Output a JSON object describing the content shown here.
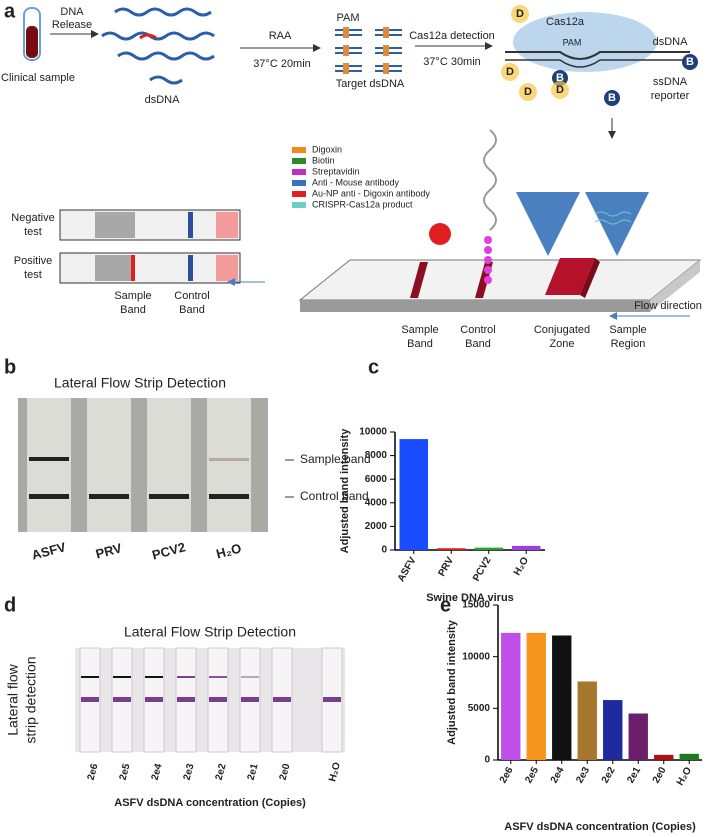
{
  "panel_a": {
    "letter": "a",
    "clinical_sample": "Clinical sample",
    "dna_release": [
      "DNA",
      "Release"
    ],
    "dsdna_label": "dsDNA",
    "raa": "RAA",
    "raa_condition": "37°C 20min",
    "pam": "PAM",
    "target_dsdna": "Target dsDNA",
    "cas12a_detection": "Cas12a detection",
    "cas12a_condition": "37°C 30min",
    "cas12a": "Cas12a",
    "pam_complex": "PAM",
    "dsdna_complex": "dsDNA",
    "ssdna_reporter": [
      "ssDNA",
      "reporter"
    ],
    "reporter_d": "D",
    "reporter_b": "B",
    "legend": [
      "Digoxin",
      "Biotin",
      "Streptavidin",
      "Anti - Mouse antibody",
      "Au-NP anti - Digoxin antibody",
      "CRISPR-Cas12a product"
    ],
    "negative_test": [
      "Negative",
      "test"
    ],
    "positive_test": [
      "Positive",
      "test"
    ],
    "result_sample_band": [
      "Sample",
      "Band"
    ],
    "result_control_band": [
      "Control",
      "Band"
    ],
    "strip_sample_band": [
      "Sample",
      "Band"
    ],
    "strip_control_band": [
      "Control",
      "Band"
    ],
    "conjugated_zone": [
      "Conjugated",
      "Zone"
    ],
    "sample_region": [
      "Sample",
      "Region"
    ],
    "flow_direction": "Flow direction"
  },
  "panel_b": {
    "letter": "b",
    "title": "Lateral Flow Strip Detection",
    "sample_band": "Sample band",
    "control_band": "Control band",
    "strips": [
      "ASFV",
      "PRV",
      "PCV2",
      "H₂O"
    ]
  },
  "panel_c": {
    "letter": "c"
  },
  "panel_d": {
    "letter": "d",
    "title": "Lateral Flow Strip Detection",
    "side_label": [
      "Lateral flow",
      "strip detection"
    ],
    "strips": [
      "2e6",
      "2e5",
      "2e4",
      "2e3",
      "2e2",
      "2e1",
      "2e0",
      "H₂O"
    ],
    "x_label": "ASFV dsDNA concentration (Copies)"
  },
  "panel_e": {
    "letter": "e"
  },
  "chart_data": [
    {
      "type": "bar",
      "x_label": "Swine DNA virus",
      "y_label": "Adjusted band intensity",
      "categories": [
        "ASFV",
        "PRV",
        "PCV2",
        "H₂O"
      ],
      "values": [
        9400,
        150,
        200,
        350
      ],
      "colors": [
        "#1a4dff",
        "#e02020",
        "#2aa02a",
        "#9a3fe0"
      ],
      "ylim": [
        0,
        10000
      ],
      "yticks": [
        0,
        2000,
        4000,
        6000,
        8000,
        10000
      ]
    },
    {
      "type": "bar",
      "x_label": "ASFV dsDNA concentration (Copies)",
      "y_label": "Adjusted band intensity",
      "categories": [
        "2e6",
        "2e5",
        "2e4",
        "2e3",
        "2e2",
        "2e1",
        "2e0",
        "H₂O"
      ],
      "values": [
        12300,
        12300,
        12050,
        7600,
        5800,
        4500,
        500,
        600
      ],
      "colors": [
        "#c04ee8",
        "#f7941d",
        "#111111",
        "#a8772e",
        "#1e2a9e",
        "#6b1f6b",
        "#b01010",
        "#1e7a1e"
      ],
      "ylim": [
        0,
        15000
      ],
      "yticks": [
        0,
        5000,
        10000,
        15000
      ]
    }
  ]
}
